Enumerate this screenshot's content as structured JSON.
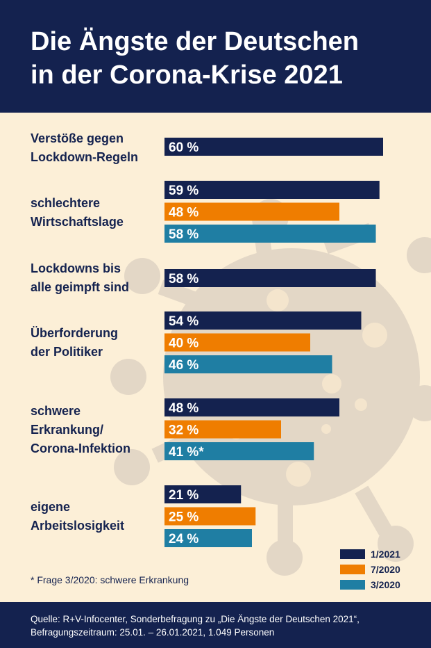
{
  "title": {
    "line1": "Die Ängste der Deutschen",
    "line2": "in der Corona-Krise 2021"
  },
  "colors": {
    "navy": "#14224f",
    "orange": "#ef7d00",
    "teal": "#1f7ea3",
    "background": "#fcefd7",
    "virus": "#e3d7c6"
  },
  "chart_data": {
    "type": "bar",
    "orientation": "horizontal",
    "title": "Die Ängste der Deutschen in der Corona-Krise 2021",
    "xlim": [
      0,
      100
    ],
    "unit": "%",
    "categories": [
      {
        "lines": [
          "Verstöße gegen",
          "Lockdown-Regeln"
        ],
        "bars": [
          {
            "series": "1/2021",
            "value": 60,
            "label": "60 %"
          }
        ]
      },
      {
        "lines": [
          "schlechtere",
          "Wirtschaftslage"
        ],
        "bars": [
          {
            "series": "1/2021",
            "value": 59,
            "label": "59 %"
          },
          {
            "series": "7/2020",
            "value": 48,
            "label": "48 %"
          },
          {
            "series": "3/2020",
            "value": 58,
            "label": "58 %"
          }
        ]
      },
      {
        "lines": [
          "Lockdowns bis",
          "alle geimpft sind"
        ],
        "bars": [
          {
            "series": "1/2021",
            "value": 58,
            "label": "58 %"
          }
        ]
      },
      {
        "lines": [
          "Überforderung",
          "der Politiker"
        ],
        "bars": [
          {
            "series": "1/2021",
            "value": 54,
            "label": "54 %"
          },
          {
            "series": "7/2020",
            "value": 40,
            "label": "40 %"
          },
          {
            "series": "3/2020",
            "value": 46,
            "label": "46 %"
          }
        ]
      },
      {
        "lines": [
          "schwere",
          "Erkrankung/",
          "Corona-Infektion"
        ],
        "bars": [
          {
            "series": "1/2021",
            "value": 48,
            "label": "48 %"
          },
          {
            "series": "7/2020",
            "value": 32,
            "label": "32 %"
          },
          {
            "series": "3/2020",
            "value": 41,
            "label": "41 %*"
          }
        ]
      },
      {
        "lines": [
          "eigene",
          "Arbeitslosigkeit"
        ],
        "bars": [
          {
            "series": "1/2021",
            "value": 21,
            "label": "21 %"
          },
          {
            "series": "7/2020",
            "value": 25,
            "label": "25 %"
          },
          {
            "series": "3/2020",
            "value": 24,
            "label": "24 %"
          }
        ]
      }
    ],
    "legend": [
      {
        "name": "1/2021",
        "color": "#14224f"
      },
      {
        "name": "7/2020",
        "color": "#ef7d00"
      },
      {
        "name": "3/2020",
        "color": "#1f7ea3"
      }
    ],
    "legend_position": "bottom-right"
  },
  "footnote": "* Frage 3/2020: schwere Erkrankung",
  "source": {
    "line1": "Quelle: R+V-Infocenter, Sonderbefragung zu „Die Ängste der Deutschen 2021“,",
    "line2": "Befragungszeitraum: 25.01. – 26.01.2021, 1.049 Personen"
  }
}
